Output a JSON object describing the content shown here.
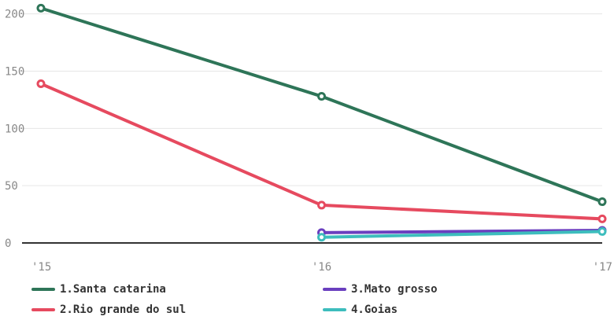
{
  "chart_data": {
    "type": "line",
    "x": [
      "'15",
      "'16",
      "'17"
    ],
    "yticks": [
      "0",
      "50",
      "100",
      "150",
      "200"
    ],
    "ylim": [
      0,
      210
    ],
    "grid": true,
    "legend_position": "bottom",
    "series": [
      {
        "name": "1.Santa catarina",
        "color": "#2e7558",
        "values": [
          205,
          128,
          36
        ]
      },
      {
        "name": "2.Rio grande do sul",
        "color": "#e64a5f",
        "values": [
          139,
          33,
          21
        ]
      },
      {
        "name": "3.Mato grosso",
        "color": "#6a3fbf",
        "values": [
          null,
          9,
          11
        ]
      },
      {
        "name": "4.Goias",
        "color": "#3dbdbd",
        "values": [
          null,
          5,
          10
        ]
      }
    ]
  }
}
